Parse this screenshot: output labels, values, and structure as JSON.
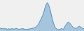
{
  "chart_data": {
    "type": "area",
    "values": [
      38,
      35,
      33,
      36,
      32,
      34,
      30,
      33,
      31,
      32,
      34,
      31,
      32,
      35,
      33,
      31,
      30,
      32,
      34,
      33,
      31,
      30,
      29,
      31,
      32,
      33,
      35,
      36,
      38,
      42,
      48,
      55,
      65,
      80,
      95,
      110,
      130,
      155,
      175,
      185,
      170,
      150,
      120,
      90,
      65,
      45,
      35,
      30,
      28,
      30,
      32,
      35,
      28,
      42,
      55,
      65,
      72,
      68,
      60,
      50,
      42,
      38,
      35,
      38,
      42,
      48,
      45,
      40,
      35,
      32
    ],
    "color": "#4a90c4",
    "xlim": [
      0,
      69
    ],
    "ylim": [
      20,
      200
    ],
    "tick_labels": false
  }
}
